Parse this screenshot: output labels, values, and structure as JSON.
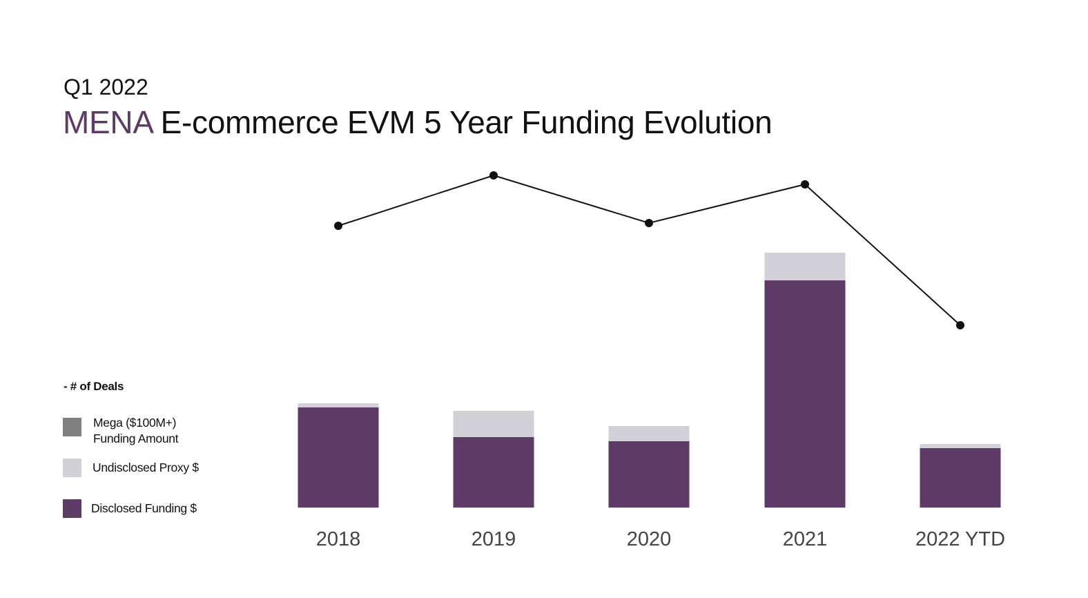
{
  "header": {
    "subtitle": "Q1 2022",
    "title_highlight": "MENA",
    "title_rest": " E-commerce EVM 5 Year Funding Evolution"
  },
  "legend": {
    "heading": "- # of Deals",
    "items": [
      {
        "label": "Mega ($100M+)\nFunding Amount",
        "color": "#808080"
      },
      {
        "label": "Undisclosed Proxy $",
        "color": "#d3d1d8"
      },
      {
        "label": "Disclosed Funding $",
        "color": "#5e3a66"
      }
    ]
  },
  "chart_data": {
    "type": "bar",
    "stacked": true,
    "categories": [
      "2018",
      "2019",
      "2020",
      "2021",
      "2022 YTD"
    ],
    "series": [
      {
        "name": "Disclosed Funding $",
        "color": "#5e3a66",
        "values": [
          145,
          102,
          96,
          329,
          86
        ]
      },
      {
        "name": "Undisclosed Proxy $",
        "color": "#d3d1d8",
        "values": [
          6,
          38,
          22,
          40,
          6
        ]
      },
      {
        "name": "Mega ($100M+) Funding Amount",
        "color": "#808080",
        "values": [
          0,
          0,
          0,
          0,
          0
        ]
      }
    ],
    "line": {
      "name": "# of Deals",
      "color": "#111111",
      "values": [
        408,
        481,
        412,
        468,
        264
      ]
    },
    "axes_visible": false,
    "grid": false
  }
}
